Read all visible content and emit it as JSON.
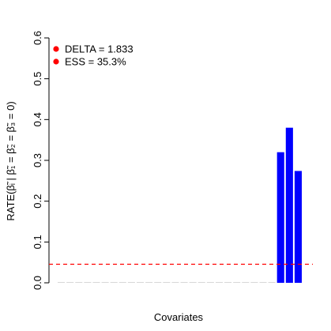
{
  "chart_data": {
    "type": "bar",
    "title": "",
    "xlabel": "Covariates",
    "ylabel": "RATE(β̃ᵢ | β̃₁ = β̃₂ = β̃₃ = 0)",
    "ylim": [
      0,
      0.6
    ],
    "yticks": [
      "0.0",
      "0.1",
      "0.2",
      "0.3",
      "0.4",
      "0.5",
      "0.6"
    ],
    "ytick_values": [
      0,
      0.1,
      0.2,
      0.3,
      0.4,
      0.5,
      0.6
    ],
    "values": [
      0.0005,
      0.0003,
      0.0004,
      0.0002,
      0.0006,
      0.0003,
      0.0004,
      0.0008,
      0.0003,
      0.0002,
      0.0004,
      0.0003,
      0.0005,
      0.0002,
      0.0003,
      0.0002,
      0.0004,
      0.0003,
      0.0002,
      0.0004,
      0.0005,
      0.0003,
      0.0002,
      0.0003,
      0.0004,
      0.32,
      0.38,
      0.274
    ],
    "bar_colors": {
      "highlight": "#0000ff",
      "other": "#bebebe"
    },
    "highlight_indices": [
      25,
      26,
      27
    ],
    "reference_line": {
      "value": 0.0455,
      "color": "#ff0000",
      "style": "dashed"
    },
    "legend": {
      "placement": "top-left",
      "marker_color": "#ff0000",
      "entries": [
        "DELTA = 1.833",
        "ESS = 35.3%"
      ]
    }
  }
}
